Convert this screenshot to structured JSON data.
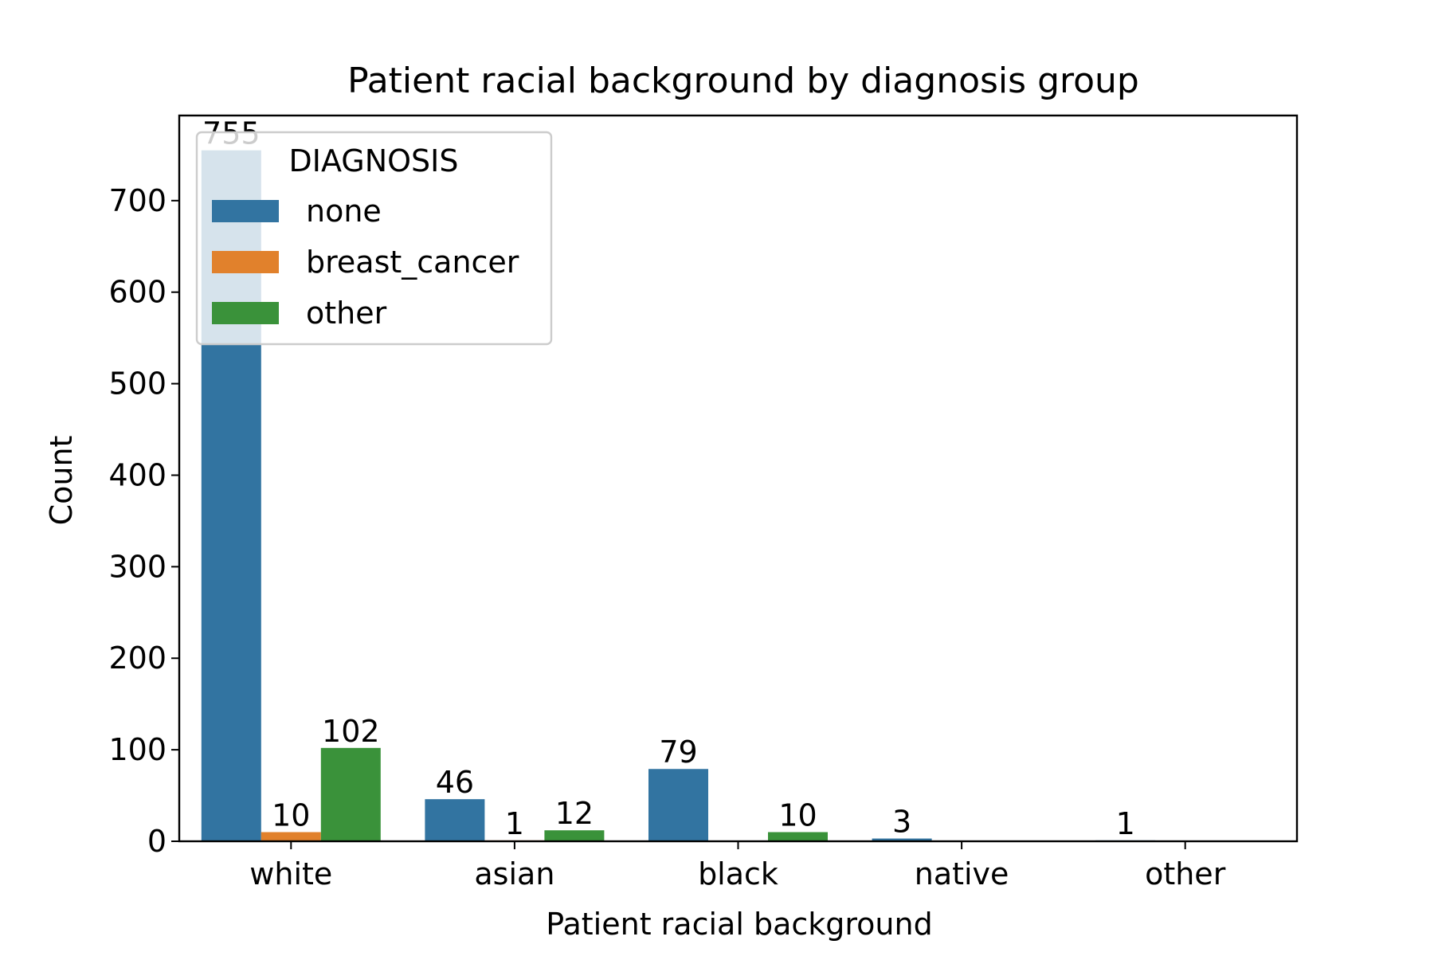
{
  "chart_data": {
    "type": "bar",
    "title": "Patient racial background by diagnosis group",
    "xlabel": "Patient racial background",
    "ylabel": "Count",
    "categories": [
      "white",
      "asian",
      "black",
      "native",
      "other"
    ],
    "ylim": [
      0,
      793
    ],
    "yticks": [
      0,
      100,
      200,
      300,
      400,
      500,
      600,
      700
    ],
    "grid": false,
    "legend": {
      "title": "DIAGNOSIS",
      "position": "top-left"
    },
    "series": [
      {
        "name": "none",
        "color": "#3274a1",
        "values": [
          755,
          46,
          79,
          3,
          1
        ],
        "labels": [
          "755",
          "46",
          "79",
          "3",
          "1"
        ]
      },
      {
        "name": "breast_cancer",
        "color": "#e1812c",
        "values": [
          10,
          1,
          0,
          0,
          0
        ],
        "labels": [
          "10",
          "1",
          "",
          "",
          ""
        ]
      },
      {
        "name": "other",
        "color": "#3a923a",
        "values": [
          102,
          12,
          10,
          0,
          0
        ],
        "labels": [
          "102",
          "12",
          "10",
          "",
          ""
        ]
      }
    ]
  }
}
